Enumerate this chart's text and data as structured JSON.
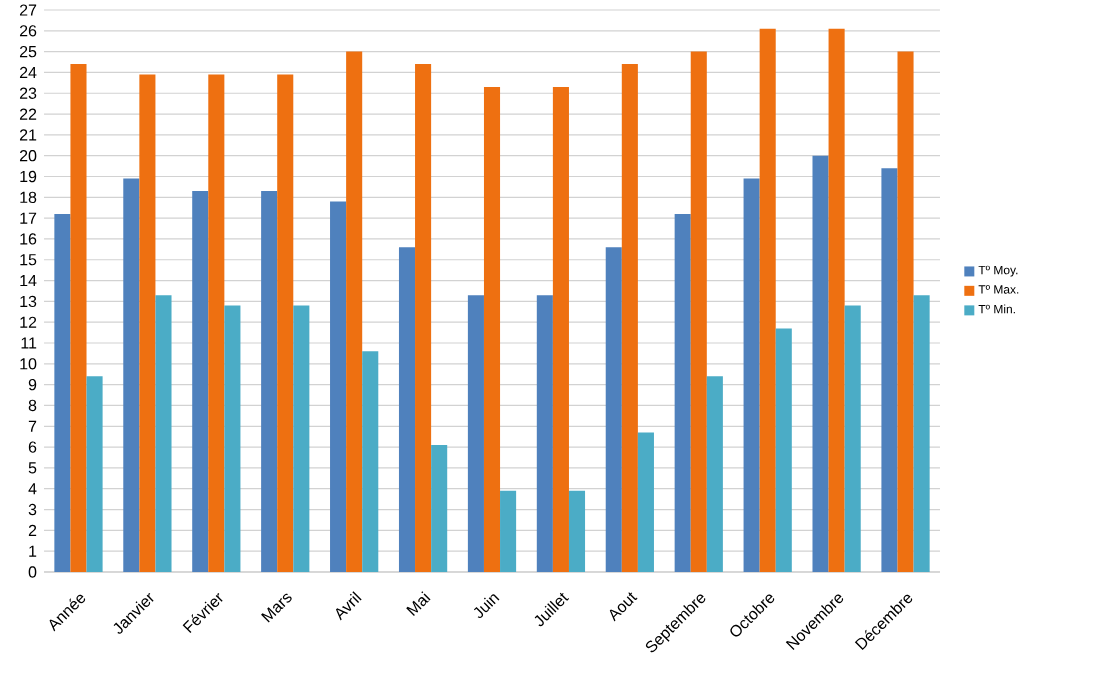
{
  "chart_data": {
    "type": "bar",
    "categories": [
      "Année",
      "Janvier",
      "Février",
      "Mars",
      "Avril",
      "Mai",
      "Juin",
      "Juillet",
      "Aout",
      "Septembre",
      "Octobre",
      "Novembre",
      "Décembre"
    ],
    "series": [
      {
        "name": "Tº Moy.",
        "color": "#4f81bd",
        "values": [
          17.2,
          18.9,
          18.3,
          18.3,
          17.8,
          15.6,
          13.3,
          13.3,
          15.6,
          17.2,
          18.9,
          20,
          19.4
        ]
      },
      {
        "name": "Tº Max.",
        "color": "#ee7011",
        "values": [
          24.4,
          23.9,
          23.9,
          23.9,
          25,
          24.4,
          23.3,
          23.3,
          24.4,
          25,
          26.1,
          26.1,
          25
        ]
      },
      {
        "name": "Tº Min.",
        "color": "#4bacc6",
        "values": [
          9.4,
          13.3,
          12.8,
          12.8,
          10.6,
          6.1,
          3.9,
          3.9,
          6.7,
          9.4,
          11.7,
          12.8,
          13.3
        ]
      }
    ],
    "ylim": [
      0,
      27
    ],
    "yticks": [
      0,
      1,
      2,
      3,
      4,
      5,
      6,
      7,
      8,
      9,
      10,
      11,
      12,
      13,
      14,
      15,
      16,
      17,
      18,
      19,
      20,
      21,
      22,
      23,
      24,
      25,
      26,
      27
    ],
    "grid": "y",
    "legend": "right"
  }
}
